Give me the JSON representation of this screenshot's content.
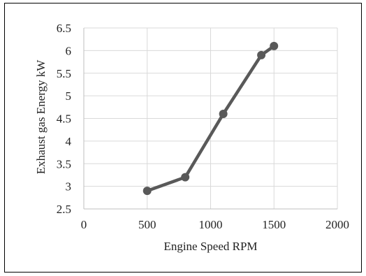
{
  "chart_data": {
    "type": "line",
    "title": "",
    "xlabel": "Engine Speed RPM",
    "ylabel": "Exhaust gas Energy kW",
    "xlim": [
      0,
      2000
    ],
    "ylim": [
      2.5,
      6.5
    ],
    "x_ticks": [
      0,
      500,
      1000,
      1500,
      2000
    ],
    "y_ticks": [
      2.5,
      3,
      3.5,
      4,
      4.5,
      5,
      5.5,
      6,
      6.5
    ],
    "x_tick_labels": [
      "0",
      "500",
      "1000",
      "1500",
      "2000"
    ],
    "y_tick_labels": [
      "2.5",
      "3",
      "3.5",
      "4",
      "4.5",
      "5",
      "5.5",
      "6",
      "6.5"
    ],
    "grid": true,
    "legend": "none",
    "series": [
      {
        "color": "#595959",
        "marker": "circle",
        "x": [
          500,
          800,
          1100,
          1400,
          1500
        ],
        "y": [
          2.9,
          3.2,
          4.6,
          5.9,
          6.1
        ]
      }
    ]
  }
}
